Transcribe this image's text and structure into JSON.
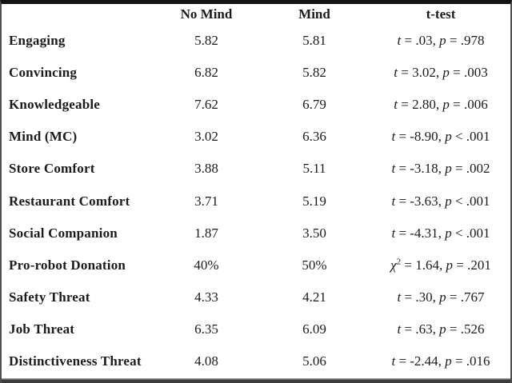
{
  "table": {
    "headers": {
      "label": "",
      "no_mind": "No Mind",
      "mind": "Mind",
      "test": "t-test"
    },
    "rows": [
      {
        "label": "Engaging",
        "no_mind": "5.82",
        "mind": "5.81",
        "test": {
          "sym": "t",
          "sup": "",
          "mid": " = .03, ",
          "psym": "p",
          "pval": " = .978"
        }
      },
      {
        "label": "Convincing",
        "no_mind": "6.82",
        "mind": "5.82",
        "test": {
          "sym": "t",
          "sup": "",
          "mid": " = 3.02, ",
          "psym": "p",
          "pval": " = .003"
        }
      },
      {
        "label": "Knowledgeable",
        "no_mind": "7.62",
        "mind": "6.79",
        "test": {
          "sym": "t",
          "sup": "",
          "mid": " = 2.80, ",
          "psym": "p",
          "pval": " = .006"
        }
      },
      {
        "label": "Mind (MC)",
        "no_mind": "3.02",
        "mind": "6.36",
        "test": {
          "sym": "t",
          "sup": "",
          "mid": " = -8.90, ",
          "psym": "p",
          "pval": " < .001"
        }
      },
      {
        "label": "Store Comfort",
        "no_mind": "3.88",
        "mind": "5.11",
        "test": {
          "sym": "t",
          "sup": "",
          "mid": " = -3.18, ",
          "psym": "p",
          "pval": " = .002"
        }
      },
      {
        "label": "Restaurant Comfort",
        "no_mind": "3.71",
        "mind": "5.19",
        "test": {
          "sym": "t",
          "sup": "",
          "mid": " = -3.63, ",
          "psym": "p",
          "pval": " < .001"
        }
      },
      {
        "label": "Social Companion",
        "no_mind": "1.87",
        "mind": "3.50",
        "test": {
          "sym": "t",
          "sup": "",
          "mid": " = -4.31, ",
          "psym": "p",
          "pval": " < .001"
        }
      },
      {
        "label": "Pro-robot Donation",
        "no_mind": "40%",
        "mind": "50%",
        "test": {
          "sym": "χ",
          "sup": "2",
          "mid": " = 1.64, ",
          "psym": "p",
          "pval": " = .201"
        }
      },
      {
        "label": "Safety Threat",
        "no_mind": "4.33",
        "mind": "4.21",
        "test": {
          "sym": "t",
          "sup": "",
          "mid": " = .30, ",
          "psym": "p",
          "pval": " = .767"
        }
      },
      {
        "label": "Job Threat",
        "no_mind": "6.35",
        "mind": "6.09",
        "test": {
          "sym": "t",
          "sup": "",
          "mid": " = .63, ",
          "psym": "p",
          "pval": " = .526"
        }
      },
      {
        "label": "Distinctiveness Threat",
        "no_mind": "4.08",
        "mind": "5.06",
        "test": {
          "sym": "t",
          "sup": "",
          "mid": " = -2.44, ",
          "psym": "p",
          "pval": " = .016"
        }
      }
    ]
  },
  "colors": {
    "text": "#1b1b1b",
    "background": "#ffffff",
    "top_rule": "#141414",
    "side_border": "#4e4e4e",
    "bottom_rule_dark": "#3c3c3c",
    "bottom_rule_light": "#9f9f9f"
  },
  "chart_data": {
    "type": "table",
    "columns": [
      "",
      "No Mind",
      "Mind",
      "t-test"
    ],
    "rows": [
      [
        "Engaging",
        "5.82",
        "5.81",
        "t = .03, p = .978"
      ],
      [
        "Convincing",
        "6.82",
        "5.82",
        "t = 3.02, p = .003"
      ],
      [
        "Knowledgeable",
        "7.62",
        "6.79",
        "t = 2.80, p = .006"
      ],
      [
        "Mind (MC)",
        "3.02",
        "6.36",
        "t = -8.90, p < .001"
      ],
      [
        "Store Comfort",
        "3.88",
        "5.11",
        "t = -3.18, p = .002"
      ],
      [
        "Restaurant Comfort",
        "3.71",
        "5.19",
        "t = -3.63, p < .001"
      ],
      [
        "Social Companion",
        "1.87",
        "3.50",
        "t = -4.31, p < .001"
      ],
      [
        "Pro-robot Donation",
        "40%",
        "50%",
        "χ2 = 1.64, p = .201"
      ],
      [
        "Safety Threat",
        "4.33",
        "4.21",
        "t = .30, p = .767"
      ],
      [
        "Job Threat",
        "6.35",
        "6.09",
        "t = .63, p = .526"
      ],
      [
        "Distinctiveness Threat",
        "4.08",
        "5.06",
        "t = -2.44, p = .016"
      ]
    ]
  }
}
